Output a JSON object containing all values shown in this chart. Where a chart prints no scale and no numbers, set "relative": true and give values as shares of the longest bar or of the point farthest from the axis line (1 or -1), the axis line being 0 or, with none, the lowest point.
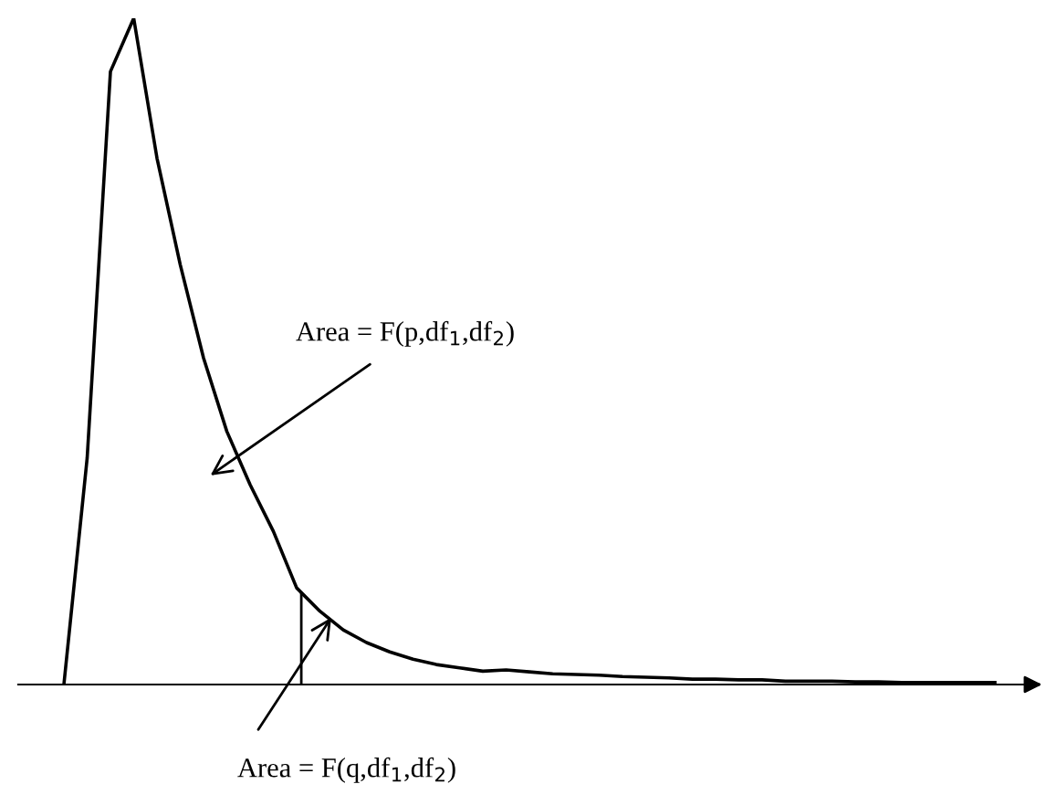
{
  "chart_data": {
    "type": "line",
    "relative": true,
    "categories": [
      null,
      null,
      null,
      null,
      null,
      null,
      null,
      null,
      null,
      null,
      null,
      null,
      null,
      null,
      null,
      null,
      null,
      null,
      null,
      null,
      null,
      null,
      null,
      null,
      null,
      null,
      null,
      null,
      null,
      null,
      null,
      null,
      null,
      null,
      null,
      null,
      null,
      null,
      null,
      null,
      null
    ],
    "series": [
      {
        "color": "#000000",
        "values": [
          0,
          0.34,
          0.92,
          1.0,
          0.79,
          0.63,
          0.49,
          0.38,
          0.3,
          0.23,
          0.145,
          0.11,
          0.082,
          0.063,
          0.049,
          0.038,
          0.03,
          0.025,
          0.02,
          0.022,
          0.019,
          0.016,
          0.015,
          0.014,
          0.012,
          0.011,
          0.01,
          0.008,
          0.008,
          0.007,
          0.007,
          0.005,
          0.005,
          0.005,
          0.004,
          0.004,
          0.003,
          0.003,
          0.003,
          0.003,
          0.003
        ]
      }
    ],
    "annotations": [
      "Area = F(p,df$_{1}$,df$_{2}$)",
      "Area = F(q,df$_{1}$,df$_{2}$)"
    ],
    "legend": false
  }
}
